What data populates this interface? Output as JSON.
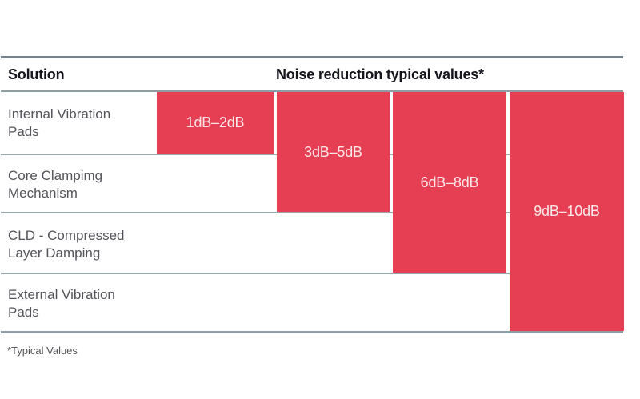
{
  "header": {
    "solution": "Solution",
    "values": "Noise reduction typical values*"
  },
  "rows": [
    {
      "label": "Internal Vibration\nPads"
    },
    {
      "label": "Core Clampimg\nMechanism"
    },
    {
      "label": "CLD - Compressed\nLayer Damping"
    },
    {
      "label": "External Vibration\nPads"
    }
  ],
  "bars": [
    {
      "label": "1dB–2dB",
      "rows_spanned": 1
    },
    {
      "label": "3dB–5dB",
      "rows_spanned": 2
    },
    {
      "label": "6dB–8dB",
      "rows_spanned": 3
    },
    {
      "label": "9dB–10dB",
      "rows_spanned": 4
    }
  ],
  "footnote": "*Typical Values",
  "colors": {
    "bar": "#e63e52",
    "bar_text": "#fbe7ea",
    "header_text": "#15151d",
    "row_text": "#53535a",
    "rule": "#75838d",
    "divider": "#9aa8aa"
  },
  "chart_data": {
    "type": "bar",
    "title": "Noise reduction typical values*",
    "categories": [
      "Internal Vibration Pads",
      "Core Clampimg Mechanism",
      "CLD - Compressed Layer Damping",
      "External Vibration Pads"
    ],
    "series": [
      {
        "name": "Noise reduction typical values (dB)",
        "values": [
          [
            1,
            2
          ],
          [
            3,
            5
          ],
          [
            6,
            8
          ],
          [
            9,
            10
          ]
        ],
        "labels": [
          "1dB–2dB",
          "3dB–5dB",
          "6dB–8dB",
          "9dB–10dB"
        ]
      }
    ],
    "ylabel": "Noise reduction (dB)",
    "footnote": "*Typical Values",
    "legend_position": "none",
    "grid": false,
    "layout_note": "stepped horizontal table-chart: bar for row N spans rows 1..N vertically, growing rightward per solution"
  }
}
